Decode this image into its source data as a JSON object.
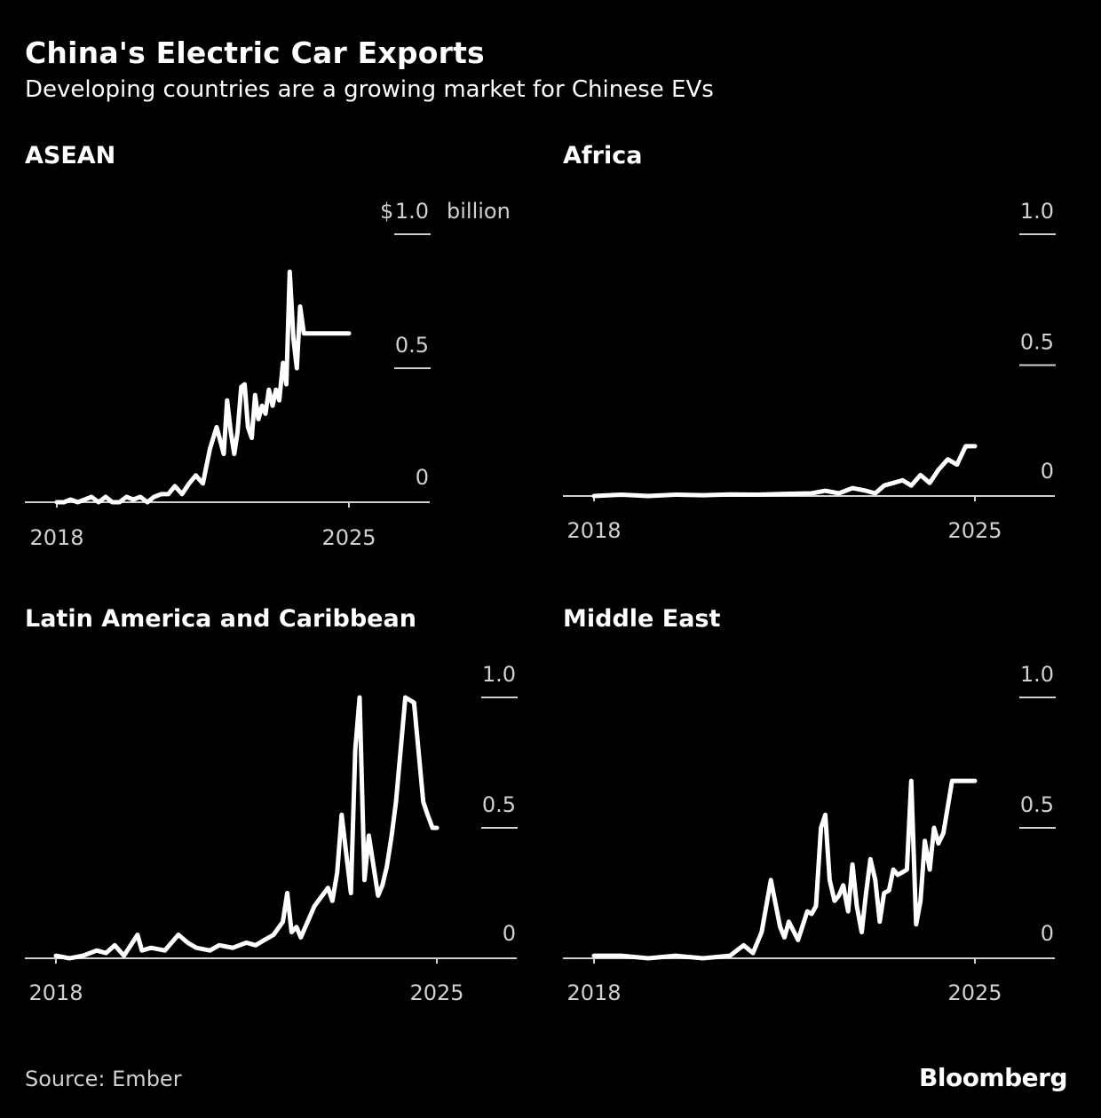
{
  "header": {
    "title": "China's Electric Car Exports",
    "subtitle": "Developing countries are a growing market for Chinese EVs"
  },
  "footer": {
    "source": "Source: Ember",
    "brand": "Bloomberg"
  },
  "colors": {
    "background": "#000000",
    "line": "#ffffff",
    "text": "#ffffff",
    "muted": "#d0d0d0"
  },
  "chart_data": [
    {
      "type": "line",
      "title": "ASEAN",
      "unit_prefix": "$",
      "unit_suffix": "billion",
      "ylim": [
        0,
        1.0
      ],
      "yticks": [
        0,
        0.5,
        1.0
      ],
      "ytick_labels": [
        "0",
        "0.5",
        "1.0"
      ],
      "xlim": [
        2018,
        2026.2
      ],
      "xticks": [
        2018,
        2025
      ],
      "xtick_labels": [
        "2018",
        "2025"
      ],
      "series": [
        {
          "x": [
            2018.0,
            2018.17,
            2018.33,
            2018.5,
            2018.67,
            2018.83,
            2019.0,
            2019.17,
            2019.33,
            2019.5,
            2019.67,
            2019.83,
            2020.0,
            2020.17,
            2020.33,
            2020.5,
            2020.67,
            2020.83,
            2021.0,
            2021.17,
            2021.33,
            2021.5,
            2021.67,
            2021.83,
            2022.0,
            2022.08,
            2022.17,
            2022.25,
            2022.33,
            2022.42,
            2022.5,
            2022.58,
            2022.67,
            2022.75,
            2022.83,
            2022.92,
            2023.0,
            2023.08,
            2023.17,
            2023.25,
            2023.33,
            2023.42,
            2023.5,
            2023.58,
            2023.67,
            2023.75,
            2023.83,
            2023.92,
            2024.0,
            2024.08,
            2024.17,
            2024.25,
            2024.33,
            2024.42,
            2024.5,
            2024.58,
            2024.67,
            2024.75,
            2024.83,
            2024.92,
            2025.0
          ],
          "y": [
            0.0,
            0.0,
            0.01,
            0.0,
            0.01,
            0.02,
            0.0,
            0.02,
            0.0,
            0.0,
            0.02,
            0.01,
            0.02,
            0.0,
            0.02,
            0.03,
            0.03,
            0.06,
            0.03,
            0.07,
            0.1,
            0.07,
            0.2,
            0.28,
            0.18,
            0.38,
            0.26,
            0.18,
            0.26,
            0.43,
            0.44,
            0.28,
            0.24,
            0.4,
            0.31,
            0.36,
            0.33,
            0.42,
            0.36,
            0.42,
            0.38,
            0.52,
            0.44,
            0.86,
            0.61,
            0.5,
            0.73,
            0.63,
            0.63,
            0.63,
            0.63,
            0.63,
            0.63,
            0.63,
            0.63,
            0.63,
            0.63,
            0.63,
            0.63,
            0.63,
            0.63
          ]
        }
      ]
    },
    {
      "type": "line",
      "title": "Africa",
      "ylim": [
        0,
        1.0
      ],
      "yticks": [
        0,
        0.5,
        1.0
      ],
      "ytick_labels": [
        "0",
        "0.5",
        "1.0"
      ],
      "xlim": [
        2018,
        2026.2
      ],
      "xticks": [
        2018,
        2025
      ],
      "xtick_labels": [
        "2018",
        "2025"
      ],
      "series": [
        {
          "x": [
            2018.0,
            2018.5,
            2019.0,
            2019.5,
            2020.0,
            2020.5,
            2021.0,
            2021.5,
            2022.0,
            2022.25,
            2022.5,
            2022.75,
            2023.0,
            2023.17,
            2023.33,
            2023.5,
            2023.67,
            2023.83,
            2024.0,
            2024.17,
            2024.33,
            2024.5,
            2024.67,
            2024.83,
            2025.0
          ],
          "y": [
            0.0,
            0.005,
            0.0,
            0.005,
            0.003,
            0.006,
            0.005,
            0.008,
            0.01,
            0.02,
            0.01,
            0.03,
            0.02,
            0.01,
            0.04,
            0.05,
            0.06,
            0.04,
            0.08,
            0.05,
            0.1,
            0.14,
            0.12,
            0.19,
            0.19
          ]
        }
      ]
    },
    {
      "type": "line",
      "title": "Latin America and Caribbean",
      "ylim": [
        0,
        1.0
      ],
      "yticks": [
        0,
        0.5,
        1.0
      ],
      "ytick_labels": [
        "0",
        "0.5",
        "1.0"
      ],
      "xlim": [
        2018,
        2026.8
      ],
      "xticks": [
        2018,
        2025
      ],
      "xtick_labels": [
        "2018",
        "2025"
      ],
      "series": [
        {
          "x": [
            2018.0,
            2018.25,
            2018.5,
            2018.75,
            2018.92,
            2019.08,
            2019.25,
            2019.5,
            2019.58,
            2019.75,
            2020.0,
            2020.25,
            2020.42,
            2020.58,
            2020.83,
            2021.0,
            2021.25,
            2021.5,
            2021.67,
            2021.83,
            2022.0,
            2022.17,
            2022.25,
            2022.33,
            2022.42,
            2022.5,
            2022.75,
            2023.0,
            2023.08,
            2023.17,
            2023.25,
            2023.42,
            2023.5,
            2023.58,
            2023.67,
            2023.75,
            2023.92,
            2024.0,
            2024.08,
            2024.17,
            2024.25,
            2024.42,
            2024.58,
            2024.75,
            2024.83,
            2024.92,
            2025.0
          ],
          "y": [
            0.01,
            0.0,
            0.01,
            0.03,
            0.02,
            0.05,
            0.01,
            0.09,
            0.03,
            0.04,
            0.03,
            0.09,
            0.06,
            0.04,
            0.03,
            0.05,
            0.04,
            0.06,
            0.05,
            0.07,
            0.09,
            0.14,
            0.25,
            0.1,
            0.12,
            0.08,
            0.2,
            0.27,
            0.22,
            0.33,
            0.55,
            0.25,
            0.8,
            1.0,
            0.3,
            0.47,
            0.24,
            0.28,
            0.35,
            0.47,
            0.6,
            1.0,
            0.98,
            0.6,
            0.55,
            0.5,
            0.5
          ]
        }
      ]
    },
    {
      "type": "line",
      "title": "Middle East",
      "ylim": [
        0,
        1.0
      ],
      "yticks": [
        0,
        0.5,
        1.0
      ],
      "ytick_labels": [
        "0",
        "0.5",
        "1.0"
      ],
      "xlim": [
        2018,
        2026.2
      ],
      "xticks": [
        2018,
        2025
      ],
      "xtick_labels": [
        "2018",
        "2025"
      ],
      "series": [
        {
          "x": [
            2018.0,
            2018.5,
            2019.0,
            2019.5,
            2020.0,
            2020.5,
            2020.75,
            2020.92,
            2021.08,
            2021.25,
            2021.42,
            2021.5,
            2021.58,
            2021.75,
            2021.92,
            2022.0,
            2022.08,
            2022.17,
            2022.25,
            2022.33,
            2022.42,
            2022.5,
            2022.58,
            2022.67,
            2022.75,
            2022.83,
            2022.92,
            2023.0,
            2023.08,
            2023.17,
            2023.25,
            2023.33,
            2023.42,
            2023.5,
            2023.58,
            2023.67,
            2023.75,
            2023.83,
            2023.92,
            2024.0,
            2024.08,
            2024.17,
            2024.25,
            2024.33,
            2024.42,
            2024.5,
            2024.58,
            2024.67,
            2024.75,
            2024.83,
            2024.92,
            2025.0
          ],
          "y": [
            0.01,
            0.01,
            0.0,
            0.01,
            0.0,
            0.01,
            0.05,
            0.02,
            0.1,
            0.3,
            0.12,
            0.08,
            0.14,
            0.07,
            0.18,
            0.17,
            0.2,
            0.5,
            0.55,
            0.3,
            0.22,
            0.24,
            0.28,
            0.18,
            0.36,
            0.2,
            0.1,
            0.25,
            0.38,
            0.3,
            0.14,
            0.25,
            0.26,
            0.34,
            0.32,
            0.33,
            0.34,
            0.68,
            0.13,
            0.22,
            0.45,
            0.34,
            0.5,
            0.44,
            0.48,
            0.58,
            0.68,
            0.68,
            0.68,
            0.68,
            0.68,
            0.68
          ]
        }
      ]
    }
  ]
}
